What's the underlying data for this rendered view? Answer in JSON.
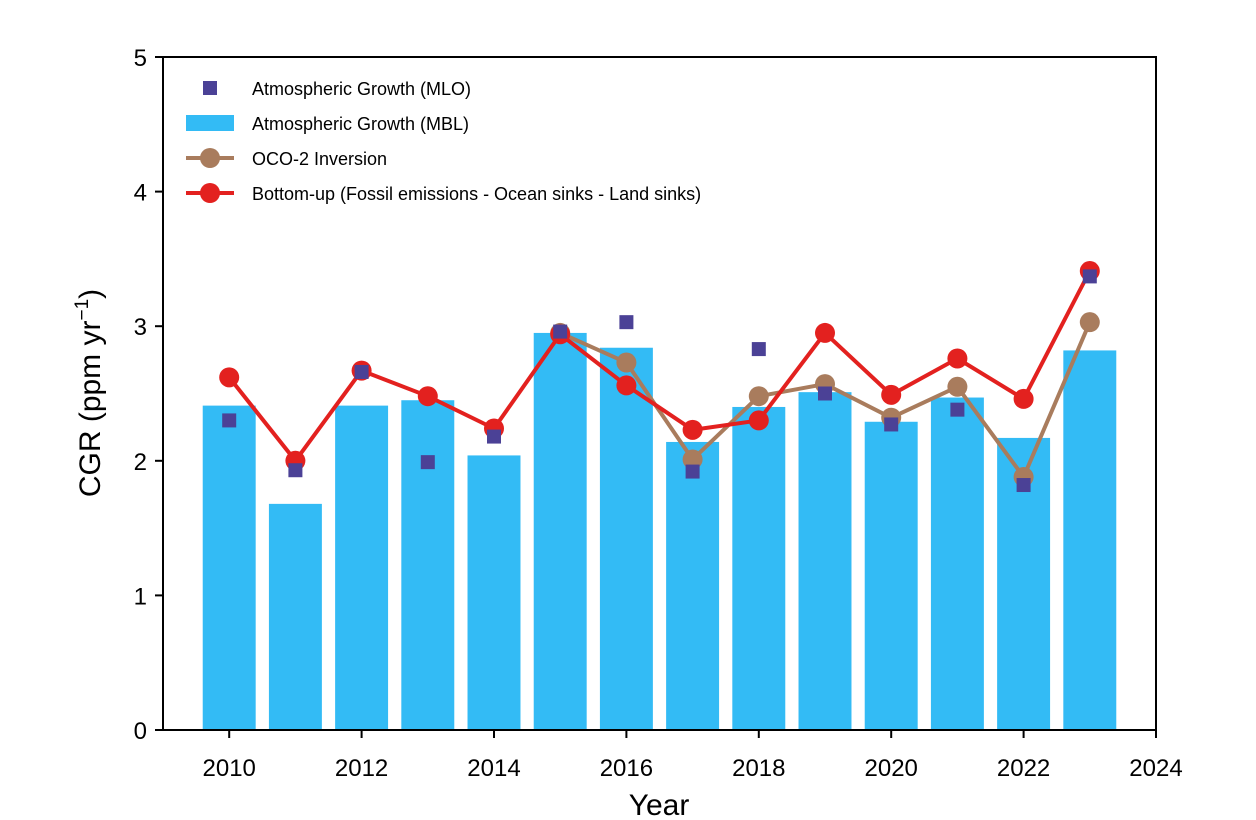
{
  "chart_data": {
    "type": "bar",
    "xlabel": "Year",
    "ylabel_main": "CGR (ppm yr",
    "ylabel_sup": "−1",
    "ylabel_close": ")",
    "xlim": [
      2009.0,
      2024.0
    ],
    "ylim": [
      0,
      5
    ],
    "x_ticks": [
      2010,
      2012,
      2014,
      2016,
      2018,
      2020,
      2022,
      2024
    ],
    "y_ticks": [
      0,
      1,
      2,
      3,
      4,
      5
    ],
    "x": [
      2010,
      2011,
      2012,
      2013,
      2014,
      2015,
      2016,
      2017,
      2018,
      2019,
      2020,
      2021,
      2022,
      2023
    ],
    "grid": false,
    "legend_position": "top-left",
    "series": [
      {
        "name": "Atmospheric Growth (MLO)",
        "kind": "scatter",
        "marker": "square",
        "color": "#4b4196",
        "values": [
          2.3,
          1.93,
          2.66,
          1.99,
          2.18,
          2.96,
          3.03,
          1.92,
          2.83,
          2.5,
          2.27,
          2.38,
          1.82,
          3.37
        ]
      },
      {
        "name": "Atmospheric Growth (MBL)",
        "kind": "bar",
        "color": "#33bbf5",
        "values": [
          2.41,
          1.68,
          2.41,
          2.45,
          2.04,
          2.95,
          2.84,
          2.14,
          2.4,
          2.51,
          2.29,
          2.47,
          2.17,
          2.82
        ]
      },
      {
        "name": "OCO-2 Inversion",
        "kind": "line",
        "marker": "circle",
        "color": "#a97c5d",
        "start_index": 5,
        "values": [
          null,
          null,
          null,
          null,
          null,
          2.95,
          2.73,
          2.01,
          2.48,
          2.57,
          2.32,
          2.55,
          1.88,
          3.03
        ]
      },
      {
        "name": "Bottom-up (Fossil emissions - Ocean sinks - Land sinks)",
        "kind": "line",
        "marker": "circle",
        "color": "#e3211f",
        "values": [
          2.62,
          2.0,
          2.67,
          2.48,
          2.24,
          2.94,
          2.56,
          2.23,
          2.3,
          2.95,
          2.49,
          2.76,
          2.46,
          3.41
        ]
      }
    ]
  }
}
